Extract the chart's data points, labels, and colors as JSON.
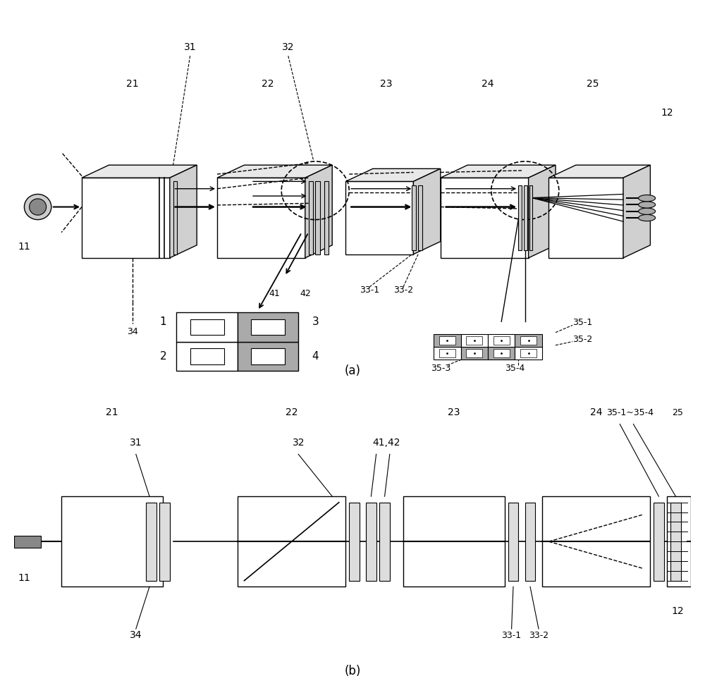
{
  "bg_color": "#ffffff",
  "fig_width": 10.0,
  "fig_height": 9.93,
  "label_a": "(a)",
  "label_b": "(b)"
}
